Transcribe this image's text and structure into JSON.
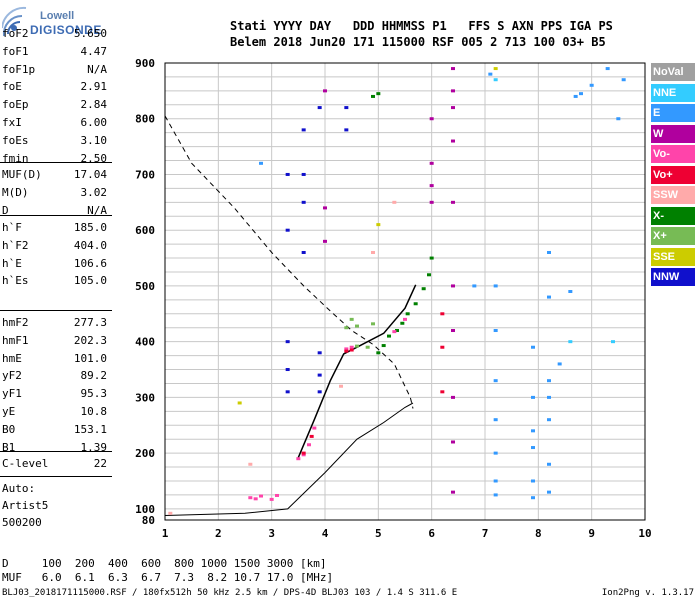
{
  "logo": {
    "line1": "Lowell",
    "line2": "DIGISONDE"
  },
  "header": {
    "line1": "Stati YYYY DAY   DDD HHMMSS P1   FFS S AXN PPS IGA PS",
    "line2": "Belem 2018 Jun20 171 115000 RSF 005 2 713 100 03+ B5"
  },
  "params_a": [
    {
      "k": "foF2",
      "v": "5.650"
    },
    {
      "k": "foF1",
      "v": "4.47"
    },
    {
      "k": "foF1p",
      "v": "N/A"
    },
    {
      "k": "foE",
      "v": "2.91"
    },
    {
      "k": "foEp",
      "v": "2.84"
    },
    {
      "k": "fxI",
      "v": "6.00"
    },
    {
      "k": "foEs",
      "v": "3.10"
    },
    {
      "k": "fmin",
      "v": "2.50"
    }
  ],
  "params_b": [
    {
      "k": "MUF(D)",
      "v": "17.04"
    },
    {
      "k": "M(D)",
      "v": "3.02"
    },
    {
      "k": "D",
      "v": "N/A"
    }
  ],
  "params_c": [
    {
      "k": "h`F",
      "v": "185.0"
    },
    {
      "k": "h`F2",
      "v": "404.0"
    },
    {
      "k": "h`E",
      "v": "106.6"
    },
    {
      "k": "h`Es",
      "v": "105.0"
    }
  ],
  "params_d": [
    {
      "k": "hmF2",
      "v": "277.3"
    },
    {
      "k": "hmF1",
      "v": "202.3"
    },
    {
      "k": "hmE",
      "v": "101.0"
    },
    {
      "k": "yF2",
      "v": "89.2"
    },
    {
      "k": "yF1",
      "v": "95.3"
    },
    {
      "k": "yE",
      "v": "10.8"
    },
    {
      "k": "B0",
      "v": "153.1"
    },
    {
      "k": "B1",
      "v": "1.39"
    }
  ],
  "params_e": [
    {
      "k": "C-level",
      "v": "22"
    }
  ],
  "autoscaling": {
    "l1": "Auto:",
    "l2": "Artist5",
    "l3": "500200"
  },
  "legend": [
    {
      "name": "NoVal",
      "color": "#a0a0a0"
    },
    {
      "name": "NNE",
      "color": "#33ccff"
    },
    {
      "name": "E",
      "color": "#3399ff"
    },
    {
      "name": "W",
      "color": "#b0009e"
    },
    {
      "name": "Vo-",
      "color": "#ff44aa"
    },
    {
      "name": "Vo+",
      "color": "#ee0033"
    },
    {
      "name": "SSW",
      "color": "#ffaaaa"
    },
    {
      "name": "X-",
      "color": "#008000"
    },
    {
      "name": "X+",
      "color": "#77bb55"
    },
    {
      "name": "SSE",
      "color": "#cccc00"
    },
    {
      "name": "NNW",
      "color": "#1010cc"
    }
  ],
  "footer": {
    "d_row": "D     100  200  400  600  800 1000 1500 3000 [km]",
    "muf_row": "MUF   6.0  6.1  6.3  6.7  7.3  8.2 10.7 17.0 [MHz]",
    "info": "BLJ03_2018171115000.RSF / 180fx512h 50 kHz 2.5 km / DPS-4D BLJ03 103 / 1.4 S 311.6 E",
    "version": "Ion2Png v. 1.3.17"
  },
  "chart_data": {
    "type": "scatter",
    "x_ticks": [
      "1",
      "2",
      "3",
      "4",
      "5",
      "6",
      "7",
      "8",
      "9",
      "10"
    ],
    "y_ticks": [
      "80",
      "100",
      "200",
      "300",
      "400",
      "500",
      "600",
      "700",
      "800",
      "900"
    ],
    "xlim": [
      1,
      10
    ],
    "ylim": [
      80,
      900
    ],
    "series": [
      {
        "name": "X-",
        "color": "#008000",
        "points": [
          [
            5.0,
            380
          ],
          [
            5.1,
            393
          ],
          [
            5.2,
            410
          ],
          [
            5.35,
            420
          ],
          [
            5.45,
            433
          ],
          [
            5.55,
            450
          ],
          [
            5.7,
            468
          ],
          [
            5.85,
            495
          ],
          [
            5.95,
            520
          ],
          [
            6.0,
            550
          ],
          [
            4.9,
            840
          ],
          [
            5.0,
            845
          ]
        ]
      },
      {
        "name": "Vo-",
        "color": "#ff44aa",
        "points": [
          [
            2.6,
            120
          ],
          [
            2.7,
            118
          ],
          [
            2.8,
            123
          ],
          [
            3.0,
            117
          ],
          [
            3.1,
            124
          ],
          [
            3.5,
            190
          ],
          [
            3.6,
            197
          ],
          [
            3.7,
            215
          ],
          [
            3.8,
            245
          ],
          [
            4.4,
            387
          ],
          [
            4.5,
            390
          ],
          [
            5.3,
            418
          ],
          [
            5.5,
            440
          ]
        ]
      },
      {
        "name": "Vo+",
        "color": "#ee0033",
        "points": [
          [
            3.6,
            200
          ],
          [
            3.75,
            230
          ],
          [
            4.4,
            383
          ],
          [
            4.5,
            385
          ],
          [
            6.2,
            390
          ],
          [
            6.2,
            310
          ],
          [
            6.2,
            450
          ]
        ]
      },
      {
        "name": "X+",
        "color": "#77bb55",
        "points": [
          [
            4.4,
            425
          ],
          [
            4.5,
            440
          ],
          [
            4.6,
            428
          ],
          [
            4.9,
            432
          ],
          [
            4.6,
            392
          ],
          [
            4.8,
            390
          ]
        ]
      },
      {
        "name": "NNW",
        "color": "#1010cc",
        "points": [
          [
            3.3,
            700
          ],
          [
            3.3,
            600
          ],
          [
            3.3,
            400
          ],
          [
            3.3,
            350
          ],
          [
            3.3,
            310
          ],
          [
            3.6,
            780
          ],
          [
            3.6,
            700
          ],
          [
            3.6,
            650
          ],
          [
            3.6,
            560
          ],
          [
            3.9,
            820
          ],
          [
            3.9,
            380
          ],
          [
            3.9,
            340
          ],
          [
            3.9,
            310
          ],
          [
            4.4,
            780
          ],
          [
            4.4,
            820
          ]
        ]
      },
      {
        "name": "W",
        "color": "#b0009e",
        "points": [
          [
            6.0,
            680
          ],
          [
            6.0,
            720
          ],
          [
            6.0,
            650
          ],
          [
            6.0,
            800
          ],
          [
            6.4,
            890
          ],
          [
            6.4,
            850
          ],
          [
            6.4,
            820
          ],
          [
            6.4,
            760
          ],
          [
            6.4,
            650
          ],
          [
            6.4,
            500
          ],
          [
            6.4,
            420
          ],
          [
            6.4,
            300
          ],
          [
            6.4,
            220
          ],
          [
            6.4,
            130
          ],
          [
            4.0,
            850
          ],
          [
            4.0,
            640
          ],
          [
            4.0,
            580
          ]
        ]
      },
      {
        "name": "E",
        "color": "#3399ff",
        "points": [
          [
            7.2,
            500
          ],
          [
            7.2,
            420
          ],
          [
            7.2,
            330
          ],
          [
            7.2,
            260
          ],
          [
            7.2,
            200
          ],
          [
            7.2,
            150
          ],
          [
            7.2,
            125
          ],
          [
            7.9,
            390
          ],
          [
            7.9,
            300
          ],
          [
            7.9,
            240
          ],
          [
            7.9,
            210
          ],
          [
            7.9,
            150
          ],
          [
            7.9,
            120
          ],
          [
            8.2,
            560
          ],
          [
            8.2,
            480
          ],
          [
            8.2,
            330
          ],
          [
            8.2,
            300
          ],
          [
            8.2,
            260
          ],
          [
            8.2,
            180
          ],
          [
            8.2,
            130
          ],
          [
            8.7,
            840
          ],
          [
            8.8,
            845
          ],
          [
            9.0,
            860
          ],
          [
            9.3,
            890
          ],
          [
            9.6,
            870
          ],
          [
            2.8,
            720
          ],
          [
            6.8,
            500
          ],
          [
            7.1,
            880
          ],
          [
            8.4,
            360
          ],
          [
            8.6,
            490
          ],
          [
            9.5,
            800
          ]
        ]
      },
      {
        "name": "NNE",
        "color": "#33ccff",
        "points": [
          [
            7.2,
            870
          ],
          [
            8.6,
            400
          ],
          [
            9.4,
            400
          ]
        ]
      },
      {
        "name": "SSE",
        "color": "#cccc00",
        "points": [
          [
            7.2,
            890
          ],
          [
            2.4,
            290
          ],
          [
            5.0,
            610
          ]
        ]
      },
      {
        "name": "SSW",
        "color": "#ffaaaa",
        "points": [
          [
            1.1,
            92
          ],
          [
            5.3,
            650
          ],
          [
            2.6,
            180
          ],
          [
            4.3,
            320
          ],
          [
            4.9,
            560
          ]
        ]
      }
    ]
  }
}
